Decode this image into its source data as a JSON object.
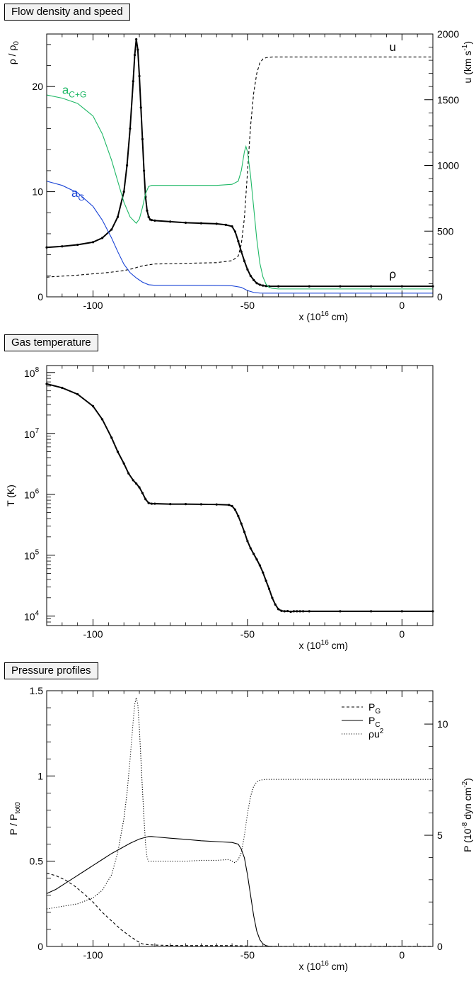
{
  "chart_data": [
    {
      "type": "line",
      "title": "Flow density and speed",
      "xlabel": "x (10^16 cm)",
      "xlabel_parts": [
        "x (10",
        "16",
        " cm)"
      ],
      "xlim": [
        -115,
        10
      ],
      "x_ticks": [
        -100,
        -50,
        0
      ],
      "x_tick_labels": [
        "-100",
        "-50",
        "0"
      ],
      "ylabel_left": "ρ / ρ_0",
      "ylabel_left_parts": [
        "ρ / ρ",
        "0"
      ],
      "ylim_left": [
        0,
        25
      ],
      "y_ticks_left": [
        0,
        10,
        20
      ],
      "y_tick_labels_left": [
        "0",
        "10",
        "20"
      ],
      "ylabel_right": "u (km s^-1)",
      "ylabel_right_parts": [
        "u (km s",
        "-1",
        ")"
      ],
      "ylim_right": [
        0,
        2000
      ],
      "y_ticks_right": [
        0,
        500,
        1000,
        1500,
        2000
      ],
      "y_tick_labels_right": [
        "0",
        "500",
        "1000",
        "1500",
        "2000"
      ],
      "series": [
        {
          "name": "ρ",
          "axis": "left",
          "color": "#000000",
          "style": "solid-markers",
          "x": [
            -115,
            -110,
            -105,
            -100,
            -97,
            -94,
            -92,
            -90,
            -89,
            -88,
            -87,
            -86.5,
            -86,
            -85.5,
            -85,
            -84.5,
            -84,
            -83.5,
            -83,
            -82.5,
            -82,
            -81.5,
            -81,
            -80,
            -75,
            -70,
            -65,
            -60,
            -57,
            -55,
            -54,
            -53,
            -52,
            -51,
            -50,
            -49,
            -48,
            -47,
            -46,
            -45,
            -44,
            -43,
            -40,
            -30,
            -20,
            -10,
            0,
            10
          ],
          "y": [
            4.7,
            4.8,
            4.95,
            5.2,
            5.6,
            6.4,
            7.6,
            10,
            12.5,
            16,
            20.5,
            23,
            24.5,
            23.5,
            21,
            18,
            15,
            12,
            9.5,
            8.2,
            7.6,
            7.35,
            7.3,
            7.25,
            7.15,
            7.05,
            7.0,
            6.95,
            6.85,
            6.7,
            6.2,
            5.3,
            4.3,
            3.4,
            2.6,
            2.0,
            1.6,
            1.3,
            1.15,
            1.07,
            1.03,
            1.0,
            1.0,
            1.0,
            1.0,
            1.0,
            1.0,
            1.0
          ]
        },
        {
          "name": "u",
          "axis": "right",
          "color": "#000000",
          "style": "dashed",
          "x": [
            -115,
            -105,
            -95,
            -90,
            -87,
            -85,
            -83,
            -80,
            -75,
            -70,
            -60,
            -55,
            -53,
            -52,
            -51,
            -50,
            -49,
            -48,
            -47,
            -46,
            -45,
            -44,
            -42,
            -40,
            -30,
            -20,
            -10,
            0,
            10
          ],
          "y": [
            150,
            165,
            185,
            200,
            215,
            230,
            240,
            250,
            252,
            255,
            260,
            275,
            310,
            400,
            600,
            950,
            1300,
            1550,
            1700,
            1780,
            1810,
            1820,
            1825,
            1825,
            1825,
            1825,
            1825,
            1825,
            1825
          ]
        },
        {
          "name": "a_C+G",
          "label": "a",
          "label_sub": "C+G",
          "axis": "left",
          "color": "#1fb866",
          "style": "solid",
          "x": [
            -115,
            -110,
            -105,
            -100,
            -97,
            -94,
            -92,
            -90,
            -88,
            -86,
            -85,
            -84,
            -83,
            -82,
            -81,
            -80,
            -75,
            -70,
            -65,
            -60,
            -55,
            -53,
            -52,
            -51,
            -50.5,
            -50,
            -49,
            -48,
            -47,
            -46,
            -45,
            -44,
            -43,
            -42,
            -40,
            -30,
            -20,
            -10,
            0,
            10
          ],
          "y": [
            19.2,
            18.9,
            18.4,
            17.2,
            15.5,
            13,
            11,
            9,
            7.6,
            7.0,
            7.4,
            8.5,
            9.8,
            10.5,
            10.6,
            10.6,
            10.6,
            10.6,
            10.6,
            10.6,
            10.7,
            11.0,
            12.0,
            13.8,
            14.3,
            13.8,
            11.5,
            8.5,
            5.5,
            3.2,
            1.9,
            1.2,
            0.9,
            0.8,
            0.75,
            0.75,
            0.75,
            0.75,
            0.75,
            0.75
          ]
        },
        {
          "name": "a_G",
          "label": "a",
          "label_sub": "G",
          "axis": "left",
          "color": "#1a44d6",
          "style": "solid",
          "x": [
            -115,
            -110,
            -105,
            -100,
            -97,
            -94,
            -92,
            -90,
            -88,
            -86,
            -85,
            -84,
            -82,
            -80,
            -70,
            -60,
            -55,
            -52,
            -50,
            -48,
            -46,
            -44,
            -40,
            -30,
            0,
            10
          ],
          "y": [
            11,
            10.6,
            9.9,
            8.6,
            7.3,
            5.6,
            4.3,
            3.1,
            2.3,
            1.8,
            1.6,
            1.4,
            1.15,
            1.1,
            1.1,
            1.08,
            1.05,
            0.9,
            0.6,
            0.42,
            0.36,
            0.35,
            0.35,
            0.35,
            0.35,
            0.35
          ]
        }
      ],
      "annotations": [
        {
          "text": "u",
          "x": -3,
          "y_axis": "right",
          "y": 1870
        },
        {
          "text": "ρ",
          "x": -3,
          "y_axis": "left",
          "y": 1.8
        },
        {
          "text": "a",
          "sub": "C+G",
          "x": -110,
          "y_axis": "left",
          "y": 19.3,
          "series": "a_C+G"
        },
        {
          "text": "a",
          "sub": "G",
          "x": -107,
          "y_axis": "left",
          "y": 9.5,
          "series": "a_G"
        }
      ]
    },
    {
      "type": "line",
      "title": "Gas temperature",
      "xlabel": "x (10^16 cm)",
      "xlabel_parts": [
        "x (10",
        "16",
        " cm)"
      ],
      "xlim": [
        -115,
        10
      ],
      "x_ticks": [
        -100,
        -50,
        0
      ],
      "x_tick_labels": [
        "-100",
        "-50",
        "0"
      ],
      "ylabel": "T (K)",
      "ylim": [
        7000,
        130000000
      ],
      "y_log": true,
      "y_ticks": [
        10000,
        100000,
        1000000,
        10000000,
        100000000
      ],
      "y_tick_labels": [
        {
          "base": "10",
          "exp": "4"
        },
        {
          "base": "10",
          "exp": "5"
        },
        {
          "base": "10",
          "exp": "6"
        },
        {
          "base": "10",
          "exp": "7"
        },
        {
          "base": "10",
          "exp": "8"
        }
      ],
      "series": [
        {
          "name": "T",
          "color": "#000000",
          "style": "solid-markers",
          "x": [
            -115,
            -110,
            -105,
            -100,
            -97,
            -94,
            -92,
            -90,
            -88.5,
            -87,
            -86,
            -85,
            -84,
            -83,
            -82,
            -81,
            -80,
            -75,
            -70,
            -65,
            -60,
            -56,
            -55,
            -54,
            -53,
            -52,
            -51,
            -50,
            -49,
            -48,
            -47,
            -46,
            -45,
            -44,
            -43,
            -42,
            -41,
            -40,
            -39,
            -38,
            -37,
            -36,
            -35,
            -34,
            -33,
            -32,
            -30,
            -20,
            -10,
            0,
            10
          ],
          "y": [
            65000000,
            56000000,
            44000000,
            28000000,
            17000000,
            8500000,
            5000000,
            3200000,
            2200000,
            1700000,
            1500000,
            1300000,
            1050000,
            830000,
            720000,
            700000,
            700000,
            690000,
            690000,
            685000,
            680000,
            670000,
            640000,
            560000,
            440000,
            330000,
            240000,
            170000,
            130000,
            105000,
            85000,
            68000,
            52000,
            38000,
            28000,
            20000,
            15500,
            13000,
            12200,
            12000,
            12100,
            11800,
            12000,
            12000,
            12000,
            12000,
            12000,
            12000,
            12000,
            12000,
            12000
          ]
        }
      ]
    },
    {
      "type": "line",
      "title": "Pressure profiles",
      "xlabel": "x (10^16 cm)",
      "xlabel_parts": [
        "x (10",
        "16",
        " cm)"
      ],
      "xlim": [
        -115,
        10
      ],
      "x_ticks": [
        -100,
        -50,
        0
      ],
      "x_tick_labels": [
        "-100",
        "-50",
        "0"
      ],
      "ylabel_left": "P / P_tot0",
      "ylabel_left_parts": [
        "P / P",
        "tot0"
      ],
      "ylim_left": [
        0,
        1.5
      ],
      "y_ticks_left": [
        0,
        0.5,
        1,
        1.5
      ],
      "y_tick_labels_left": [
        "0",
        "0.5",
        "1",
        "1.5"
      ],
      "ylabel_right": "P (10^-8 dyn cm^-2)",
      "ylabel_right_parts": [
        "P (10",
        "-8",
        " dyn cm",
        "-2",
        ")"
      ],
      "ylim_right": [
        0,
        11.5
      ],
      "y_ticks_right": [
        0,
        5,
        10
      ],
      "y_tick_labels_right": [
        "0",
        "5",
        "10"
      ],
      "legend": {
        "position": "top-right",
        "entries": [
          {
            "series": "P_G",
            "label": "P",
            "sub": "G",
            "sup": "",
            "style": "dashed"
          },
          {
            "series": "P_C",
            "label": "P",
            "sub": "C",
            "sup": "",
            "style": "solid"
          },
          {
            "series": "rho_u2",
            "label": "ρu",
            "sub": "",
            "sup": "2",
            "style": "dotted"
          }
        ]
      },
      "series": [
        {
          "name": "P_G",
          "axis": "left",
          "color": "#000000",
          "style": "dashed",
          "x": [
            -115,
            -112,
            -109,
            -106,
            -103,
            -100,
            -97,
            -94,
            -91,
            -88,
            -86,
            -84,
            -82,
            -80,
            -75,
            -70,
            -60,
            -55,
            -52,
            -50,
            -48,
            -46,
            -44,
            -40,
            -30,
            0,
            10
          ],
          "y": [
            0.43,
            0.415,
            0.39,
            0.355,
            0.31,
            0.26,
            0.2,
            0.15,
            0.1,
            0.06,
            0.035,
            0.015,
            0.01,
            0.008,
            0.006,
            0.005,
            0.005,
            0.005,
            0.004,
            0.003,
            0.002,
            0.001,
            0.001,
            0.001,
            0.001,
            0.001,
            0.001
          ]
        },
        {
          "name": "P_C",
          "axis": "left",
          "color": "#000000",
          "style": "solid",
          "x": [
            -115,
            -112,
            -109,
            -106,
            -103,
            -100,
            -97,
            -94,
            -91,
            -88,
            -85,
            -82,
            -81,
            -80,
            -75,
            -70,
            -65,
            -60,
            -55,
            -53,
            -52,
            -51,
            -50,
            -49,
            -48,
            -47,
            -46,
            -45,
            -44,
            -43,
            -40,
            -30,
            0,
            10
          ],
          "y": [
            0.31,
            0.335,
            0.37,
            0.405,
            0.44,
            0.475,
            0.51,
            0.545,
            0.575,
            0.605,
            0.63,
            0.645,
            0.645,
            0.643,
            0.635,
            0.628,
            0.62,
            0.615,
            0.61,
            0.6,
            0.57,
            0.52,
            0.42,
            0.3,
            0.18,
            0.09,
            0.04,
            0.015,
            0.005,
            0.001,
            0,
            0,
            0,
            0
          ]
        },
        {
          "name": "rho_u2",
          "axis": "left",
          "color": "#000000",
          "style": "dotted",
          "x": [
            -115,
            -110,
            -105,
            -100,
            -97,
            -94,
            -92,
            -90,
            -89,
            -88,
            -87,
            -86.5,
            -86,
            -85.5,
            -85,
            -84.5,
            -84,
            -83.5,
            -83,
            -82.5,
            -82,
            -81.5,
            -81,
            -80,
            -75,
            -70,
            -65,
            -60,
            -56,
            -55,
            -54,
            -53,
            -52,
            -51,
            -50,
            -49,
            -48,
            -47,
            -46,
            -45,
            -44,
            -43,
            -42,
            -40,
            -30,
            -20,
            -10,
            0,
            10
          ],
          "y": [
            0.22,
            0.235,
            0.25,
            0.285,
            0.33,
            0.42,
            0.55,
            0.75,
            0.9,
            1.1,
            1.32,
            1.42,
            1.46,
            1.42,
            1.28,
            1.1,
            0.92,
            0.75,
            0.6,
            0.52,
            0.5,
            0.5,
            0.5,
            0.5,
            0.5,
            0.5,
            0.505,
            0.505,
            0.51,
            0.5,
            0.49,
            0.51,
            0.55,
            0.65,
            0.78,
            0.88,
            0.94,
            0.965,
            0.975,
            0.978,
            0.98,
            0.98,
            0.98,
            0.98,
            0.98,
            0.98,
            0.98,
            0.98,
            0.98
          ]
        }
      ]
    }
  ]
}
